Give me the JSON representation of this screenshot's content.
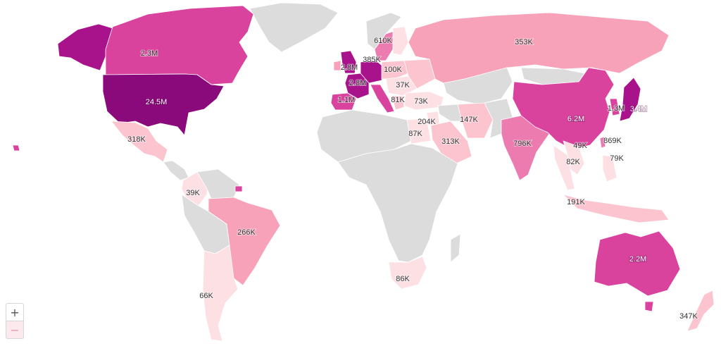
{
  "controls": {
    "zoom_in": "+",
    "zoom_out": "−"
  },
  "colors": {
    "no_data": "#dcdcdc",
    "scale": [
      "#fde0e4",
      "#fbc4cf",
      "#f7a2b8",
      "#ec7bb0",
      "#d9439e",
      "#a8138c",
      "#8a0a7c"
    ]
  },
  "labels": {
    "usa": "24.5M",
    "canada": "2.3M",
    "mexico": "318K",
    "colombia": "39K",
    "brazil": "266K",
    "argentina": "66K",
    "uk": "2.8M",
    "france": "2.8M",
    "spain": "1.1M",
    "sweden": "610K",
    "denmark": "385K",
    "poland": "100K",
    "romania": "37K",
    "greece": "81K",
    "turkey": "73K",
    "egypt": "87K",
    "jordan": "204K",
    "saudi": "313K",
    "iran": "147K",
    "india": "796K",
    "russia": "353K",
    "china": "6.2M",
    "korea": "1.3M",
    "japan": "3.4M",
    "taiwan": "869K",
    "vietnam": "49K",
    "thailand": "82K",
    "philippines": "79K",
    "indonesia": "191K",
    "south_africa": "86K",
    "australia": "2.2M",
    "new_zealand": "347K"
  }
}
